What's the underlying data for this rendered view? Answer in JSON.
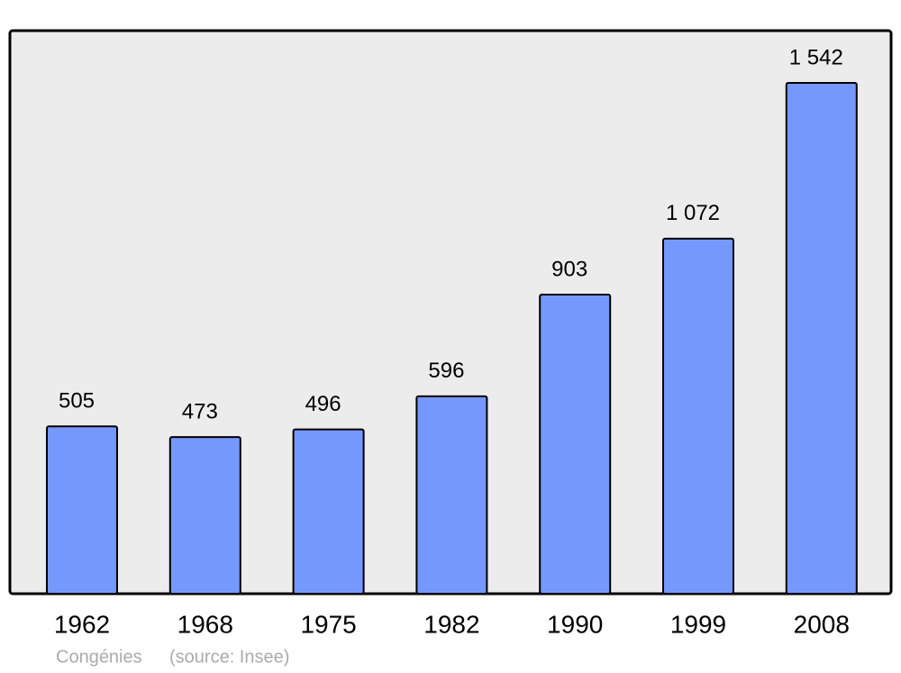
{
  "chart_data": {
    "type": "bar",
    "categories": [
      "1962",
      "1968",
      "1975",
      "1982",
      "1990",
      "1999",
      "2008"
    ],
    "values": [
      505,
      473,
      496,
      596,
      903,
      1072,
      1542
    ],
    "value_labels": [
      "505",
      "473",
      "496",
      "596",
      "903",
      "1 072",
      "1 542"
    ],
    "color": "#7598ff",
    "place": "Congénies",
    "source": "(source: Insee)"
  }
}
